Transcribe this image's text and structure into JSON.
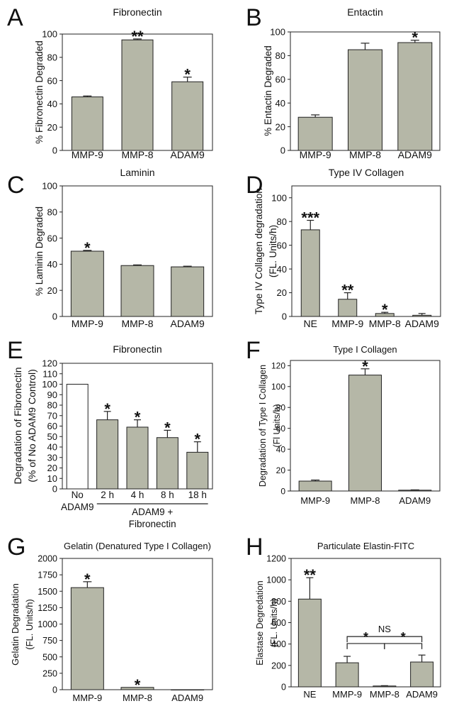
{
  "chart_data": [
    {
      "type": "bar",
      "panel_letter": "A",
      "title": "Fibronectin",
      "ylabel": "% Fibronectin Degraded",
      "xlabel": "",
      "categories": [
        "MMP-9",
        "MMP-8",
        "ADAM9"
      ],
      "values": [
        46,
        95,
        59
      ],
      "errors": [
        0.8,
        0.8,
        4
      ],
      "significance": [
        "",
        "**",
        "*"
      ],
      "ylim": [
        0,
        100
      ],
      "yticks": [
        "0",
        "20",
        "40",
        "60",
        "80",
        "100"
      ],
      "bar_color": "#b5b7a7"
    },
    {
      "type": "bar",
      "panel_letter": "B",
      "title": "Entactin",
      "ylabel": "% Entactin Degraded",
      "xlabel": "",
      "categories": [
        "MMP-9",
        "MMP-8",
        "ADAM9"
      ],
      "values": [
        28,
        85,
        91
      ],
      "errors": [
        2,
        5.5,
        2
      ],
      "significance": [
        "",
        "",
        "*"
      ],
      "ylim": [
        0,
        100
      ],
      "yticks": [
        "0",
        "20",
        "40",
        "60",
        "80",
        "100"
      ],
      "bar_color": "#b5b7a7"
    },
    {
      "type": "bar",
      "panel_letter": "C",
      "title": "Laminin",
      "ylabel": "% Laminin Degraded",
      "xlabel": "",
      "categories": [
        "MMP-9",
        "MMP-8",
        "ADAM9"
      ],
      "values": [
        50,
        39,
        38
      ],
      "errors": [
        0.6,
        0.5,
        0.5
      ],
      "significance": [
        "*",
        "",
        ""
      ],
      "ylim": [
        0,
        100
      ],
      "yticks": [
        "0",
        "20",
        "40",
        "60",
        "80",
        "100"
      ],
      "bar_color": "#b5b7a7"
    },
    {
      "type": "bar",
      "panel_letter": "D",
      "title": "Type IV Collagen",
      "ylabel": "Type IV Collagen degradation",
      "ylabel2": "(FL. Units/h)",
      "xlabel": "",
      "categories": [
        "NE",
        "MMP-9",
        "MMP-8",
        "ADAM9"
      ],
      "values": [
        73,
        14.5,
        2.5,
        1
      ],
      "errors": [
        8,
        5.5,
        1,
        1.5
      ],
      "significance": [
        "***",
        "**",
        "*",
        ""
      ],
      "ylim": [
        0,
        110
      ],
      "yticks": [
        "0",
        "20",
        "40",
        "60",
        "80",
        "100"
      ],
      "bar_color": "#b5b7a7"
    },
    {
      "type": "bar",
      "panel_letter": "E",
      "title": "Fibronectin",
      "ylabel": "Degradation of Fibronectin",
      "ylabel2": "(% of No ADAM9 Control)",
      "xlabel": "",
      "categories": [
        "No",
        "2 h",
        "4 h",
        "8 h",
        "18 h"
      ],
      "category_sublabel": "ADAM9",
      "group_label_1": "ADAM9 +",
      "group_label_2": "Fibronectin",
      "values": [
        100,
        66,
        59,
        49,
        35
      ],
      "errors": [
        0,
        8,
        7,
        7,
        10
      ],
      "significance": [
        "",
        "*",
        "*",
        "*",
        "*"
      ],
      "bar_colors": [
        "#ffffff",
        "#b5b7a7",
        "#b5b7a7",
        "#b5b7a7",
        "#b5b7a7"
      ],
      "ylim": [
        0,
        120
      ],
      "yticks": [
        "0",
        "10",
        "20",
        "30",
        "40",
        "50",
        "60",
        "70",
        "80",
        "90",
        "100",
        "110",
        "120"
      ]
    },
    {
      "type": "bar",
      "panel_letter": "F",
      "title": "Type I Collagen",
      "ylabel": "Degradation of Type I Collagen",
      "ylabel2": "(Fl Units/h)",
      "xlabel": "",
      "categories": [
        "MMP-9",
        "MMP-8",
        "ADAM9"
      ],
      "values": [
        9.5,
        111,
        0.8
      ],
      "errors": [
        1,
        6,
        0.3
      ],
      "significance": [
        "",
        "*",
        ""
      ],
      "ylim": [
        0,
        125
      ],
      "yticks": [
        "0",
        "20",
        "40",
        "60",
        "80",
        "100",
        "120"
      ],
      "bar_color": "#b5b7a7"
    },
    {
      "type": "bar",
      "panel_letter": "G",
      "title": "Gelatin (Denatured Type I Collagen)",
      "ylabel": "Gelatin Degradation",
      "ylabel2": "(FL. Units/h)",
      "xlabel": "",
      "categories": [
        "MMP-9",
        "MMP-8",
        "ADAM9"
      ],
      "values": [
        1555,
        35,
        0
      ],
      "errors": [
        90,
        0,
        0
      ],
      "significance": [
        "*",
        "*",
        ""
      ],
      "ylim": [
        0,
        2000
      ],
      "yticks": [
        "0",
        "250",
        "500",
        "750",
        "1000",
        "1250",
        "1500",
        "1750",
        "2000"
      ],
      "bar_color": "#b5b7a7"
    },
    {
      "type": "bar",
      "panel_letter": "H",
      "title": "Particulate Elastin-FITC",
      "ylabel": "Elastase Degredation",
      "ylabel2": "(FL. Units/h)",
      "xlabel": "",
      "categories": [
        "NE",
        "MMP-9",
        "MMP-8",
        "ADAM9"
      ],
      "values": [
        820,
        225,
        8,
        232
      ],
      "errors": [
        200,
        60,
        3,
        65
      ],
      "significance": [
        "**",
        "",
        "",
        ""
      ],
      "brackets": [
        {
          "from": 1,
          "to": 3,
          "label": "NS",
          "level": 2
        },
        {
          "from": 1,
          "to": 2,
          "label": "*",
          "level": 1
        },
        {
          "from": 2,
          "to": 3,
          "label": "*",
          "level": 1
        }
      ],
      "ylim": [
        0,
        1200
      ],
      "yticks": [
        "0",
        "200",
        "400",
        "600",
        "800",
        "1000",
        "1200"
      ],
      "bar_color": "#b5b7a7"
    }
  ]
}
